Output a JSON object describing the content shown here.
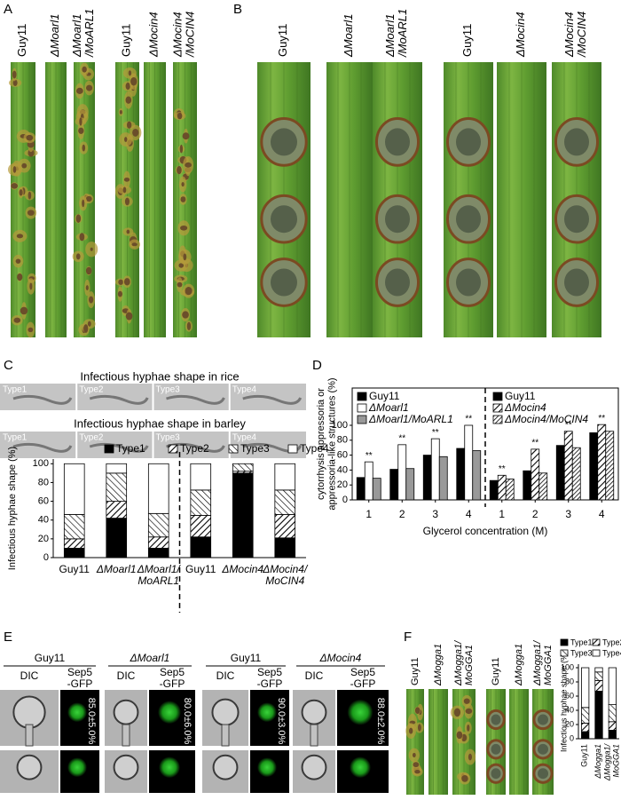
{
  "panels": {
    "A": {
      "label": "A",
      "columns": [
        [
          "Guy11"
        ],
        [
          "ΔMoarl1"
        ],
        [
          "ΔMoarl1",
          "/MoARL1"
        ],
        [
          "Guy11"
        ],
        [
          "ΔMocin4"
        ],
        [
          "ΔMocin4",
          "/MoCIN4"
        ]
      ]
    },
    "B": {
      "label": "B",
      "columns": [
        [
          "Guy11"
        ],
        [
          "ΔMoarl1"
        ],
        [
          "ΔMoarl1",
          "/MoARL1"
        ],
        [
          "Guy11"
        ],
        [
          "ΔMocin4"
        ],
        [
          "ΔMocin4",
          "/MoCIN4"
        ]
      ]
    },
    "C": {
      "label": "C",
      "rice": "Infectious hyphae shape in rice",
      "barley": "Infectious hyphae shape in barley",
      "types": [
        "Type1",
        "Type2",
        "Type3",
        "Type4"
      ]
    },
    "D": {
      "label": "D"
    },
    "E": {
      "label": "E",
      "strains": [
        "Guy11",
        "ΔMoarl1",
        "Guy11",
        "ΔMocin4"
      ],
      "dic": "DIC",
      "gfp": [
        "Sep5",
        "-GFP"
      ],
      "rates": [
        "85.0±5.0%",
        "80.0±6.0%",
        "90.0±3.0%",
        "88.0±2.0%"
      ]
    },
    "F": {
      "label": "F",
      "columns": [
        [
          "Guy11"
        ],
        [
          "ΔMogga1"
        ],
        [
          "ΔMogga1/",
          "MoGGA1"
        ],
        [
          "Guy11"
        ],
        [
          "ΔMogga1"
        ],
        [
          "ΔMogga1/",
          "MoGGA1"
        ]
      ]
    }
  },
  "chart_data": [
    {
      "type": "stacked_bar",
      "ylabel": "Infectious hyphae shape (%)",
      "categories": [
        [
          "Guy11"
        ],
        [
          "ΔMoarl1"
        ],
        [
          "ΔMoarl1/",
          "MoARL1"
        ],
        [
          "Guy11"
        ],
        [
          "ΔMocin4"
        ],
        [
          "ΔMocin4/",
          "MoCIN4"
        ]
      ],
      "series": [
        {
          "name": "Type1",
          "color": "#000000",
          "values": [
            10,
            42,
            10,
            22,
            90,
            21
          ]
        },
        {
          "name": "Type2",
          "color": "#000000",
          "hatch": "diagonal",
          "values": [
            10,
            18,
            12,
            23,
            2,
            25
          ]
        },
        {
          "name": "Type3",
          "color": "#000000",
          "hatch": "antidiagonal",
          "values": [
            26,
            30,
            25,
            27,
            8,
            26
          ]
        },
        {
          "name": "Type4",
          "color": "#ffffff",
          "values": [
            54,
            10,
            53,
            28,
            0,
            28
          ]
        }
      ],
      "ylim": [
        0,
        105
      ],
      "yticks": [
        0,
        20,
        40,
        60,
        80,
        100
      ],
      "legend": "top"
    },
    {
      "type": "grouped_bar",
      "ylabel": [
        "cytorrhysis appressoria or",
        "appressoria-like structures (%)"
      ],
      "xlabel": "Glycerol concentration (M)",
      "categories": [
        "1",
        "2",
        "3",
        "4",
        "1",
        "2",
        "3",
        "4"
      ],
      "series": [
        {
          "name": "Guy11",
          "color": "#000000",
          "values": [
            30,
            41,
            60,
            69,
            null,
            null,
            null,
            null
          ]
        },
        {
          "name": "ΔMoarl1",
          "color": "#ffffff",
          "values": [
            51,
            74,
            82,
            100,
            null,
            null,
            null,
            null
          ],
          "significance": [
            "**",
            "**",
            "**",
            "**",
            null,
            null,
            null,
            null
          ]
        },
        {
          "name": "ΔMoarl1/MoARL1",
          "color": "#999999",
          "values": [
            29,
            42,
            58,
            66,
            null,
            null,
            null,
            null
          ]
        },
        {
          "name": "Guy11",
          "color": "#000000",
          "values": [
            null,
            null,
            null,
            null,
            26,
            39,
            73,
            90
          ]
        },
        {
          "name": "ΔMocin4",
          "color": "#000000",
          "hatch": "diagonal",
          "values": [
            null,
            null,
            null,
            null,
            33,
            68,
            92,
            101
          ],
          "significance": [
            null,
            null,
            null,
            null,
            "**",
            "**",
            "**",
            "**"
          ]
        },
        {
          "name": "ΔMocin4/MoCIN4",
          "color": "#000000",
          "hatch": "dense",
          "values": [
            null,
            null,
            null,
            null,
            28,
            36,
            70,
            92
          ]
        }
      ],
      "ylim": [
        0,
        150
      ],
      "yticks": [
        0,
        20,
        40,
        60,
        80,
        100
      ],
      "legend": "top-left"
    },
    {
      "type": "stacked_bar",
      "ylabel": "Infectious hyphae shape (%)",
      "categories": [
        [
          "Guy11"
        ],
        [
          "ΔMogga1"
        ],
        [
          "ΔMogga1/",
          "MoGGA1"
        ]
      ],
      "series": [
        {
          "name": "Type1",
          "color": "#000000",
          "values": [
            10,
            67,
            12
          ]
        },
        {
          "name": "Type2",
          "color": "#000000",
          "hatch": "diagonal",
          "values": [
            12,
            15,
            12
          ]
        },
        {
          "name": "Type3",
          "color": "#000000",
          "hatch": "antidiagonal",
          "values": [
            22,
            12,
            24
          ]
        },
        {
          "name": "Type4",
          "color": "#ffffff",
          "values": [
            56,
            6,
            52
          ]
        }
      ],
      "ylim": [
        0,
        105
      ],
      "yticks": [
        0,
        20,
        40,
        60,
        80,
        100
      ],
      "legend": "top"
    }
  ]
}
